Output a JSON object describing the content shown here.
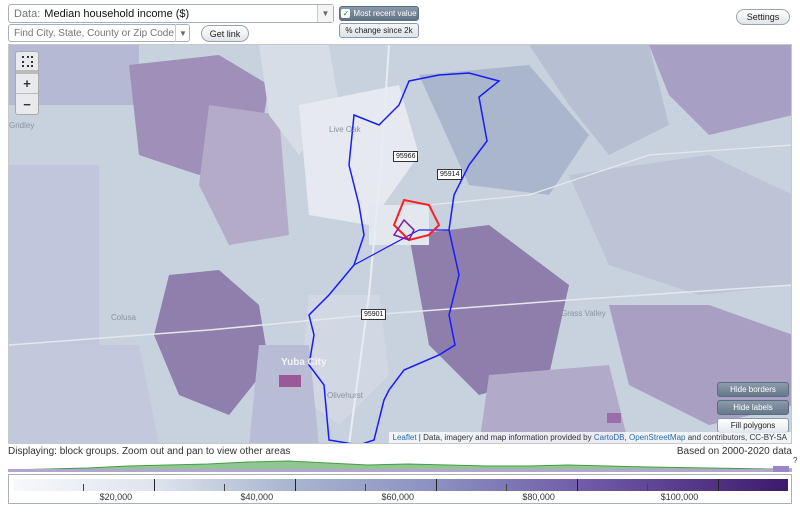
{
  "controls": {
    "data_label": "Data:",
    "data_value": "Median household income ($)",
    "find_placeholder": "Find City, State, County or Zip Code",
    "get_link": "Get link",
    "most_recent": "Most recent value",
    "pct_change": "% change since 2k",
    "settings": "Settings"
  },
  "map": {
    "zoom_in": "+",
    "zoom_out": "−",
    "zip_labels": [
      "95966",
      "95914",
      "95901"
    ],
    "place_labels": [
      "Gridley",
      "Yuba City",
      "Olivehurst",
      "Colusa",
      "Live Oak",
      "Grass Valley"
    ],
    "buttons": {
      "hide_borders": "Hide borders",
      "hide_labels": "Hide labels",
      "fill_polygons": "Fill polygons"
    },
    "attribution": {
      "leaflet": "Leaflet",
      "sep1": " | Data, imagery and map information provided by ",
      "carto": "CartoDB",
      "sep2": ", ",
      "osm": "OpenStreetMap",
      "rest": " and contributors, CC-BY-SA"
    },
    "colors": {
      "boundary": "#1a1aff",
      "highlight": "#ff2020",
      "accent": "#6a2a8a"
    }
  },
  "footer": {
    "displaying": "Displaying: block groups. Zoom out and pan to view other areas",
    "based_on": "Based on 2000-2020 data",
    "question": "?"
  },
  "legend": {
    "labels": [
      "$20,000",
      "$40,000",
      "$60,000",
      "$80,000",
      "$100,000"
    ],
    "min": 0,
    "max": 110000,
    "major_ticks": [
      20000,
      40000,
      60000,
      80000,
      100000
    ]
  }
}
